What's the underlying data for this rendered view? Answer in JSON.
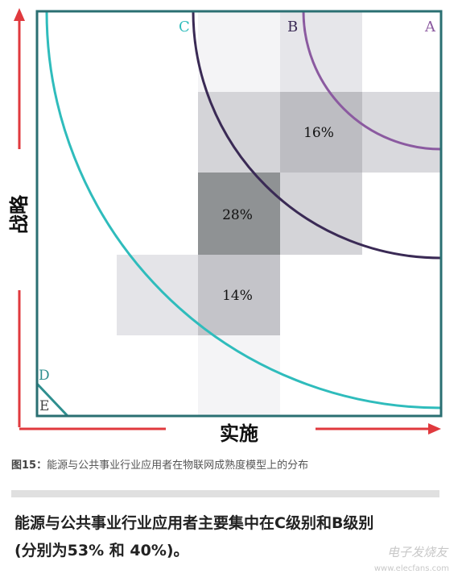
{
  "diagram": {
    "y_axis_label": "战略",
    "x_axis_label": "实施",
    "zone_labels": {
      "A": "A",
      "B": "B",
      "C": "C",
      "D": "D",
      "E": "E"
    },
    "cell_values": {
      "c16": "16%",
      "c28": "28%",
      "c14": "14%"
    },
    "colors": {
      "axis_arrow": "#e0393e",
      "frame": "#2a6f72",
      "arc_A": "#8b5aa0",
      "arc_B": "#3a2a55",
      "arc_C": "#2fbcbc",
      "arc_D": "#2f8f8f",
      "heat_light": "#ececf0",
      "heat_mid": "#c8c8cd",
      "heat_dark": "#8c8f91"
    }
  },
  "caption": {
    "prefix": "图15：",
    "text": "能源与公共事业行业应用者在物联网成熟度模型上的分布"
  },
  "summary": {
    "line1": "能源与公共事业行业应用者主要集中在C级别和B级别",
    "line2": "(分别为53% 和 40%)。"
  },
  "watermark": {
    "text": "电子发烧友",
    "url": "www.elecfans.com"
  }
}
